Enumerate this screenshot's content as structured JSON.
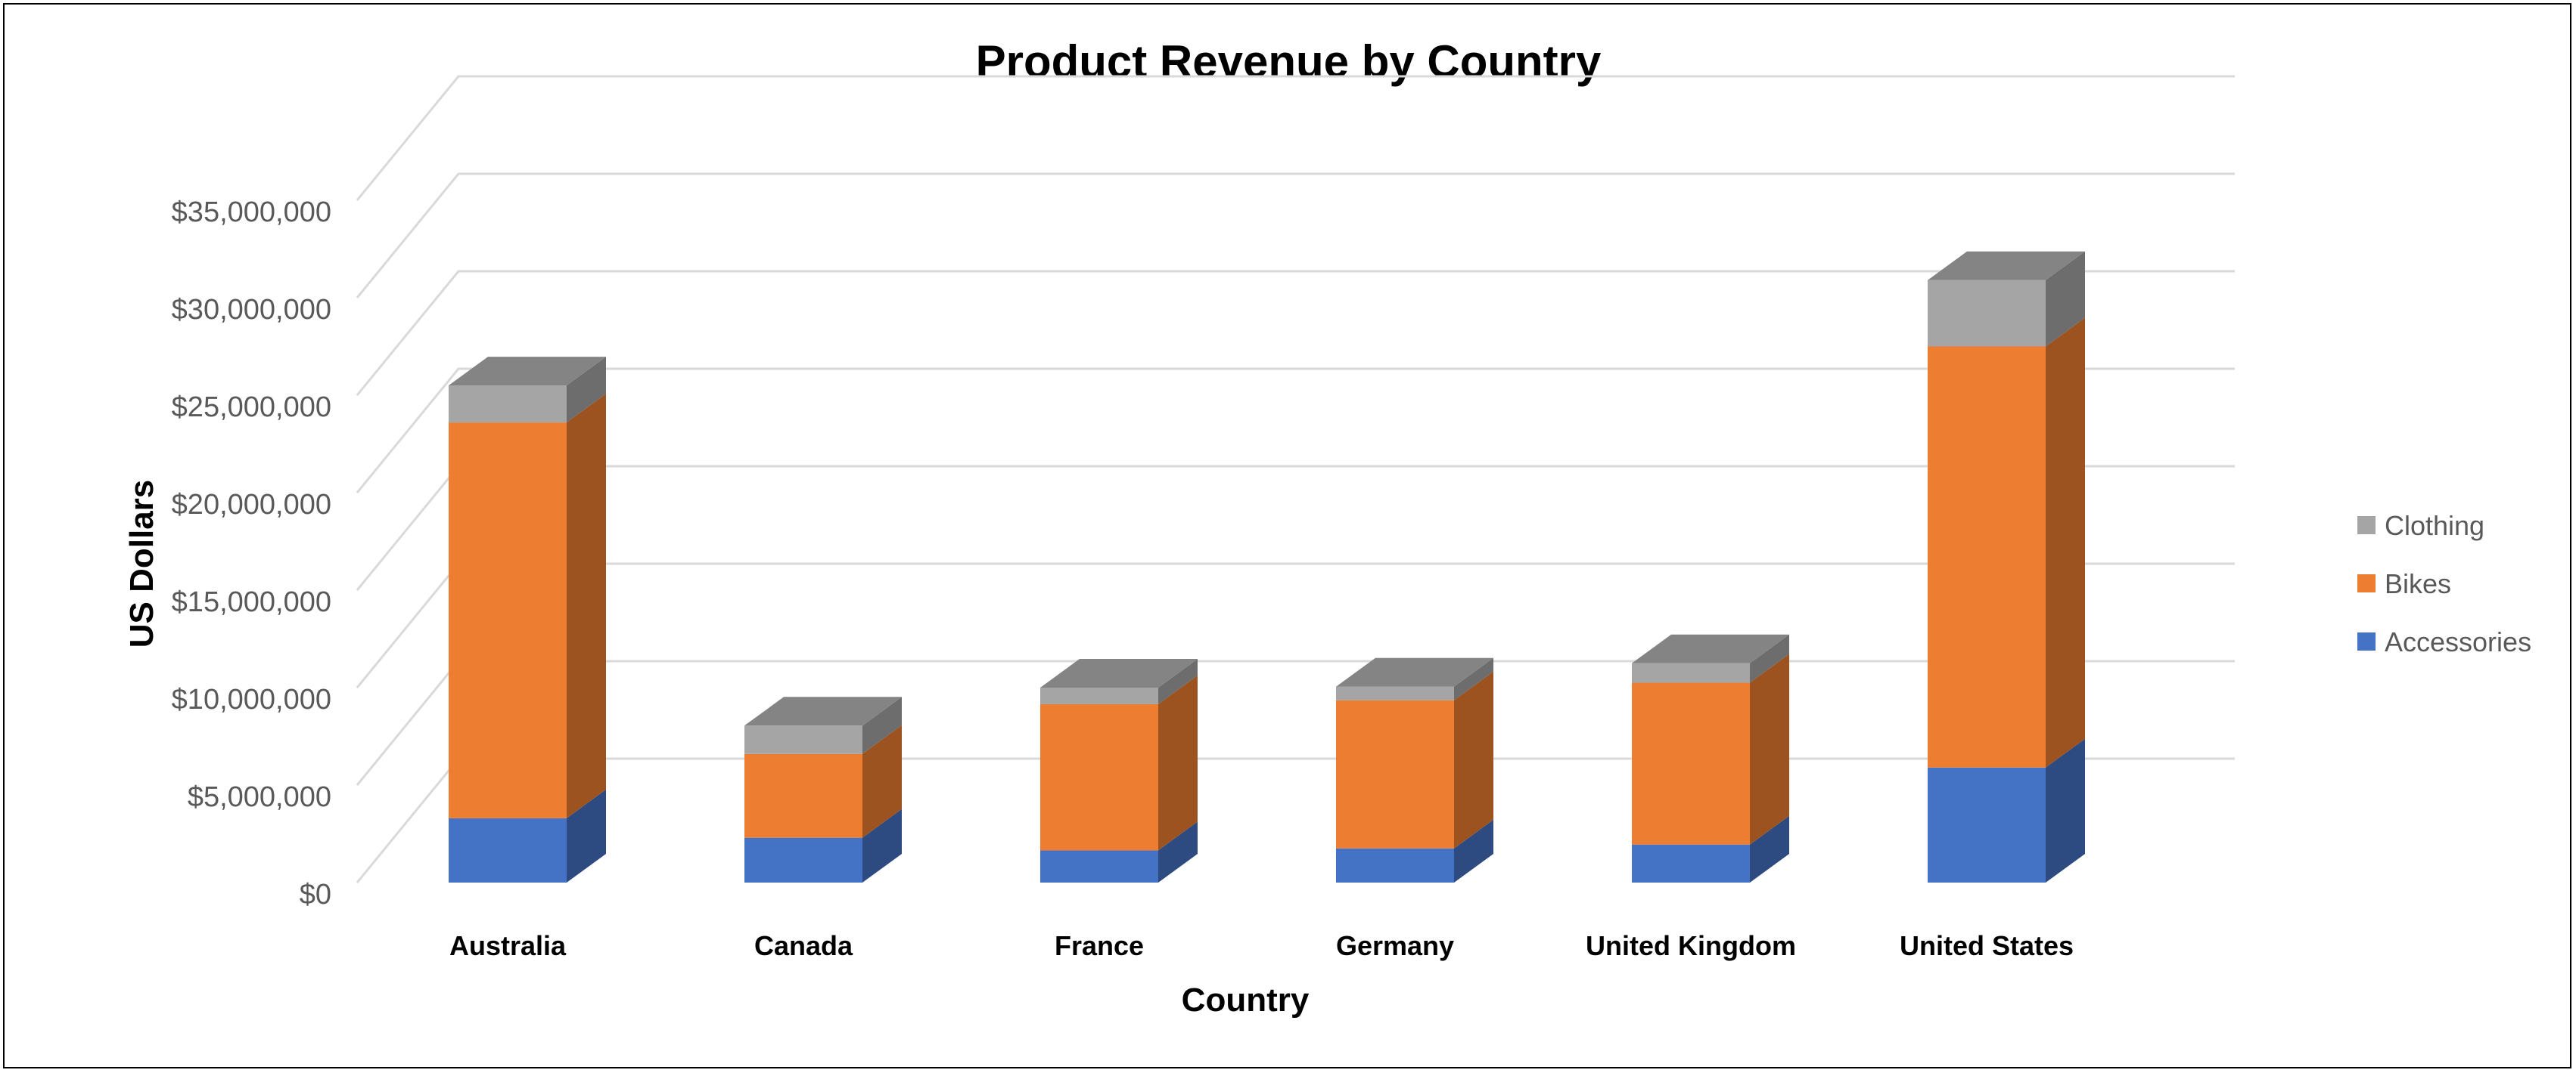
{
  "chart_data": {
    "type": "bar",
    "stacked": true,
    "three_d": true,
    "title": "Product Revenue by Country",
    "xlabel": "Country",
    "ylabel": "US Dollars",
    "ylim": [
      0,
      35000000
    ],
    "yticks": [
      "$0",
      "$5,000,000",
      "$10,000,000",
      "$15,000,000",
      "$20,000,000",
      "$25,000,000",
      "$30,000,000",
      "$35,000,000"
    ],
    "categories": [
      "Australia",
      "Canada",
      "France",
      "Germany",
      "United Kingdom",
      "United States"
    ],
    "series": [
      {
        "name": "Accessories",
        "color": "#4472C4",
        "values": [
          3300000,
          2300000,
          1650000,
          1750000,
          1950000,
          5900000
        ]
      },
      {
        "name": "Bikes",
        "color": "#ED7D31",
        "values": [
          20300000,
          4300000,
          7500000,
          7600000,
          8300000,
          21600000
        ]
      },
      {
        "name": "Clothing",
        "color": "#A5A5A5",
        "values": [
          1900000,
          1450000,
          850000,
          700000,
          1000000,
          3400000
        ]
      }
    ],
    "grid": true,
    "legend_position": "right"
  }
}
